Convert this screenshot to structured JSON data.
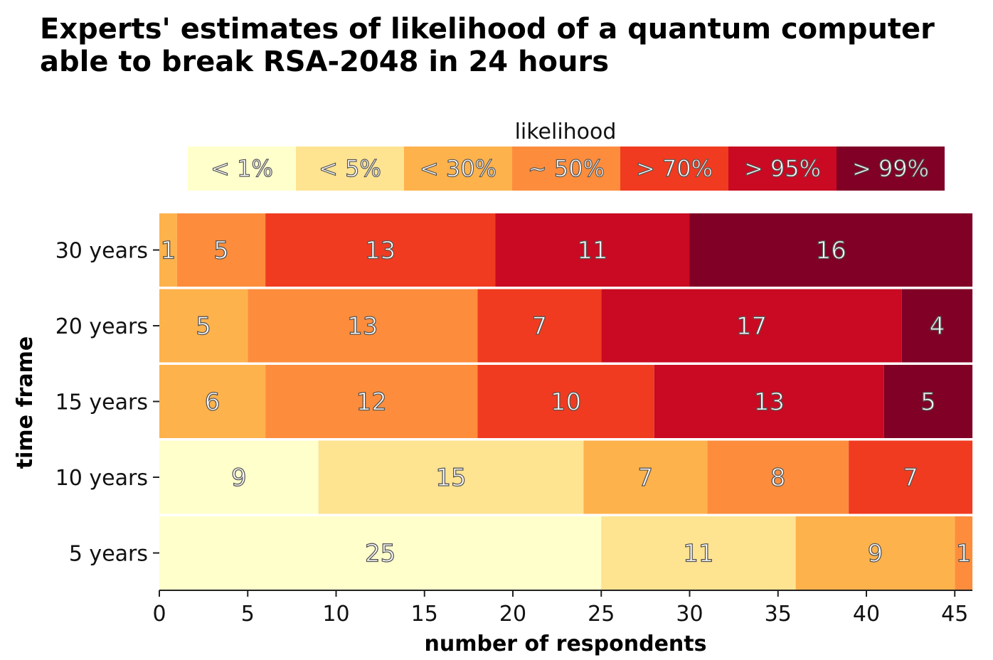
{
  "chart_data": {
    "type": "bar",
    "orientation": "horizontal",
    "stacked": true,
    "title": [
      "Experts' estimates of likelihood of a quantum computer",
      "able to break RSA-2048 in 24 hours"
    ],
    "xlabel": "number of respondents",
    "ylabel": "time frame",
    "xlim": [
      0,
      46
    ],
    "xticks": [
      0,
      5,
      10,
      15,
      20,
      25,
      30,
      35,
      40,
      45
    ],
    "legend_title": "likelihood",
    "legend_position": "top",
    "categories": [
      "30 years",
      "20 years",
      "15 years",
      "10 years",
      "5 years"
    ],
    "series": [
      {
        "name": "< 1%",
        "color": "#ffffcc",
        "values": [
          0,
          0,
          0,
          9,
          25
        ]
      },
      {
        "name": "< 5%",
        "color": "#fee391",
        "values": [
          0,
          0,
          0,
          15,
          11
        ]
      },
      {
        "name": "< 30%",
        "color": "#feb24c",
        "values": [
          1,
          5,
          6,
          7,
          9
        ]
      },
      {
        "name": "~ 50%",
        "color": "#fd8d3c",
        "values": [
          5,
          13,
          12,
          8,
          1
        ]
      },
      {
        "name": "> 70%",
        "color": "#f03b20",
        "values": [
          13,
          7,
          10,
          7,
          0
        ]
      },
      {
        "name": "> 95%",
        "color": "#c90a22",
        "values": [
          11,
          17,
          13,
          0,
          0
        ]
      },
      {
        "name": "> 99%",
        "color": "#800026",
        "values": [
          16,
          4,
          5,
          0,
          0
        ]
      }
    ]
  }
}
